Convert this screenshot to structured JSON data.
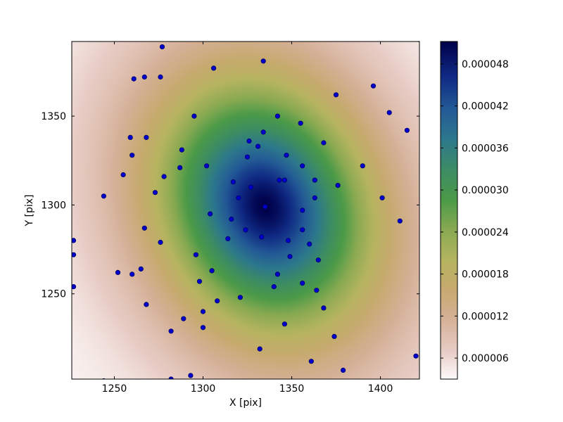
{
  "chart_data": {
    "type": "heatmap",
    "title": "",
    "xlabel": "X [pix]",
    "ylabel": "Y [pix]",
    "xlim": [
      1226,
      1422
    ],
    "ylim": [
      1202,
      1392
    ],
    "xticks": [
      1250,
      1300,
      1350,
      1400
    ],
    "yticks": [
      1250,
      1300,
      1350
    ],
    "colorbar": {
      "range": [
        3e-06,
        5.12e-05
      ],
      "ticks": [
        6e-06,
        1.2e-05,
        1.8e-05,
        2.4e-05,
        3e-05,
        3.6e-05,
        4.2e-05,
        4.8e-05
      ],
      "tick_labels": [
        "0.000006",
        "0.000012",
        "0.000018",
        "0.000024",
        "0.000030",
        "0.000036",
        "0.000042",
        "0.000048"
      ],
      "colormap": "gist_earth_r"
    },
    "field": {
      "peak_center": [
        1335,
        1299
      ],
      "peak_value": 5.12e-05,
      "min_value": 3e-06
    },
    "points": {
      "color": "#0000cc",
      "edge_color": "#000066",
      "x": [
        1227,
        1227,
        1227,
        1244,
        1244,
        1252,
        1255,
        1259,
        1260,
        1260,
        1261,
        1265,
        1267,
        1267,
        1268,
        1268,
        1273,
        1276,
        1276,
        1277,
        1278,
        1282,
        1282,
        1287,
        1288,
        1289,
        1293,
        1295,
        1296,
        1298,
        1300,
        1300,
        1302,
        1304,
        1305,
        1306,
        1308,
        1314,
        1316,
        1317,
        1320,
        1321,
        1324,
        1325,
        1326,
        1327,
        1331,
        1332,
        1333,
        1334,
        1334,
        1335,
        1340,
        1342,
        1342,
        1343,
        1346,
        1346,
        1347,
        1348,
        1349,
        1355,
        1356,
        1356,
        1356,
        1356,
        1360,
        1361,
        1363,
        1363,
        1364,
        1365,
        1368,
        1368,
        1374,
        1375,
        1376,
        1379,
        1390,
        1396,
        1401,
        1405,
        1411,
        1415,
        1420,
        1422
      ],
      "y": [
        1280,
        1272,
        1254,
        1305,
        1201,
        1262,
        1317,
        1338,
        1328,
        1261,
        1371,
        1264,
        1372,
        1287,
        1338,
        1244,
        1307,
        1372,
        1279,
        1389,
        1316,
        1229,
        1202,
        1321,
        1331,
        1236,
        1204,
        1350,
        1272,
        1257,
        1240,
        1231,
        1322,
        1295,
        1263,
        1377,
        1246,
        1281,
        1292,
        1313,
        1304,
        1248,
        1286,
        1327,
        1336,
        1310,
        1333,
        1219,
        1282,
        1381,
        1341,
        1299,
        1254,
        1350,
        1261,
        1314,
        1233,
        1314,
        1328,
        1280,
        1271,
        1346,
        1322,
        1297,
        1286,
        1256,
        1278,
        1212,
        1304,
        1314,
        1252,
        1269,
        1335,
        1242,
        1226,
        1362,
        1311,
        1207,
        1322,
        1367,
        1304,
        1352,
        1291,
        1342,
        1215,
        1393
      ]
    }
  }
}
